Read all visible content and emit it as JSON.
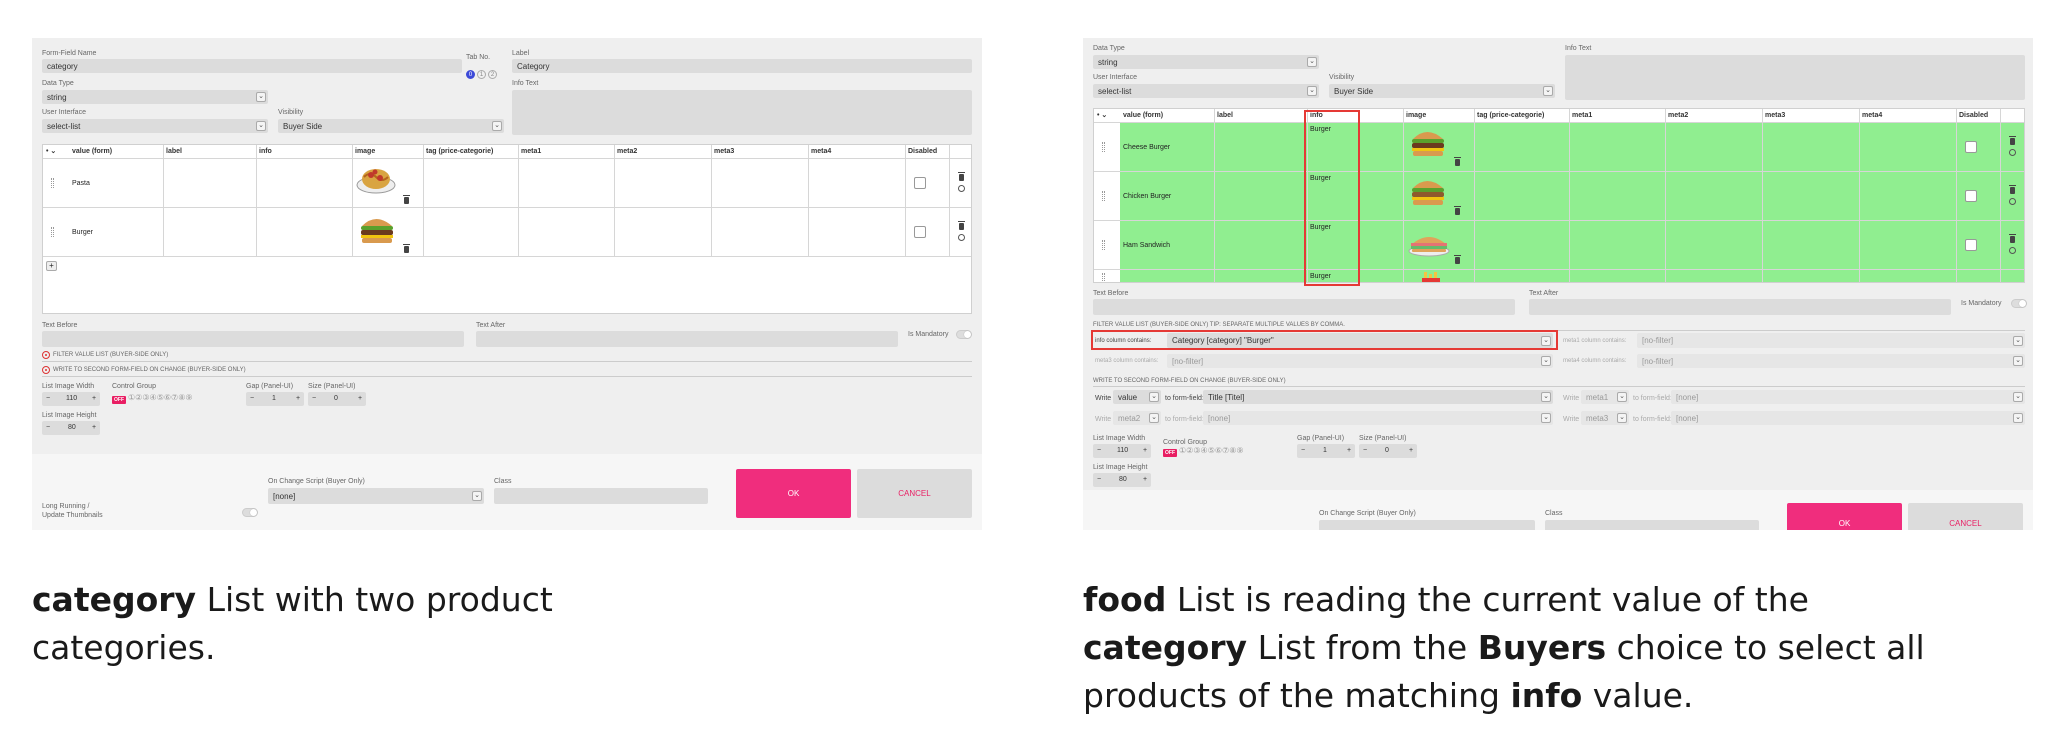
{
  "left": {
    "labels": {
      "form_field_name": "Form-Field Name",
      "tab_no": "Tab No.",
      "label": "Label",
      "data_type": "Data Type",
      "info_text": "Info Text",
      "user_interface": "User Interface",
      "visibility": "Visibility",
      "text_before": "Text Before",
      "text_after": "Text After",
      "is_mandatory": "Is Mandatory",
      "filter_value_list": "FILTER VALUE LIST (BUYER-SIDE ONLY)",
      "write_second": "WRITE TO SECOND FORM-FIELD ON CHANGE (BUYER-SIDE ONLY)",
      "list_image_width": "List Image Width",
      "control_group": "Control Group",
      "gap": "Gap (Panel-UI)",
      "size": "Size (Panel-UI)",
      "list_image_height": "List Image Height",
      "long_running": "Long Running /",
      "update_thumbnails": "Update Thumbnails",
      "on_change_script": "On Change Script (Buyer Only)",
      "class": "Class"
    },
    "values": {
      "form_field_name": "category",
      "label": "Category",
      "data_type": "string",
      "user_interface": "select-list",
      "visibility": "Buyer Side",
      "list_image_width": "110",
      "list_image_height": "80",
      "gap": "1",
      "size": "0",
      "on_change_script": "[none]",
      "off": "OFF"
    },
    "tab_numbers": [
      "0",
      "1",
      "2"
    ],
    "columns": [
      "value (form)",
      "label",
      "info",
      "image",
      "tag (price-categorie)",
      "meta1",
      "meta2",
      "meta3",
      "meta4",
      "Disabled"
    ],
    "rows": [
      {
        "value": "Pasta",
        "image": "pasta-icon"
      },
      {
        "value": "Burger",
        "image": "burger-icon"
      }
    ],
    "buttons": {
      "ok": "OK",
      "cancel": "CANCEL"
    }
  },
  "right": {
    "labels": {
      "data_type": "Data Type",
      "info_text": "Info Text",
      "user_interface": "User Interface",
      "visibility": "Visibility",
      "text_before": "Text Before",
      "text_after": "Text After",
      "is_mandatory": "Is Mandatory",
      "filter_tip": "FILTER VALUE LIST (BUYER-SIDE ONLY) TIP: SEPARATE MULTIPLE VALUES BY COMMA.",
      "info_contains": "info column contains:",
      "meta1_contains": "meta1 column contains:",
      "meta3_contains": "meta3 column contains:",
      "meta4_contains": "meta4 column contains:",
      "write_second": "WRITE TO SECOND FORM-FIELD ON CHANGE (BUYER-SIDE ONLY)",
      "write": "Write",
      "to_form_field": "to form-field:",
      "list_image_width": "List Image Width",
      "control_group": "Control Group",
      "gap": "Gap (Panel-UI)",
      "size": "Size (Panel-UI)",
      "list_image_height": "List Image Height",
      "on_change_script": "On Change Script (Buyer Only)",
      "class": "Class"
    },
    "values": {
      "data_type": "string",
      "user_interface": "select-list",
      "visibility": "Buyer Side",
      "info_filter": "Category [category] \"Burger\"",
      "no_filter": "[no-filter]",
      "write1": "value",
      "write1_target": "Title [Titel]",
      "write2": "meta1",
      "write3": "meta2",
      "write4": "meta3",
      "none": "[none]",
      "list_image_width": "110",
      "list_image_height": "80",
      "gap": "1",
      "size": "0",
      "off": "OFF"
    },
    "columns": [
      "value (form)",
      "label",
      "info",
      "image",
      "tag (price-categorie)",
      "meta1",
      "meta2",
      "meta3",
      "meta4",
      "Disabled"
    ],
    "rows": [
      {
        "value": "Cheese Burger",
        "info": "Burger",
        "image": "burger-icon"
      },
      {
        "value": "Chicken Burger",
        "info": "Burger",
        "image": "burger-icon"
      },
      {
        "value": "Ham Sandwich",
        "info": "Burger",
        "image": "sandwich-icon"
      },
      {
        "value": "",
        "info": "Burger",
        "image": "fries-icon"
      }
    ],
    "buttons": {
      "ok": "OK",
      "cancel": "CANCEL"
    }
  },
  "captions": {
    "left": [
      {
        "b": "category",
        "t": " List with two product"
      },
      {
        "b": "",
        "t": "categories."
      }
    ],
    "right_line1_b": "food",
    "right_line1_t": " List is reading the current value of the",
    "right_line2_b1": "category",
    "right_line2_t1": " List from the ",
    "right_line2_b2": "Buyers",
    "right_line2_t2": " choice to select all",
    "right_line3_t1": "products of the matching ",
    "right_line3_b": "info",
    "right_line3_t2": " value."
  },
  "colors": {
    "accent": "#f02d7d",
    "highlight_green": "#90ee90",
    "highlight_red": "#e53935"
  }
}
